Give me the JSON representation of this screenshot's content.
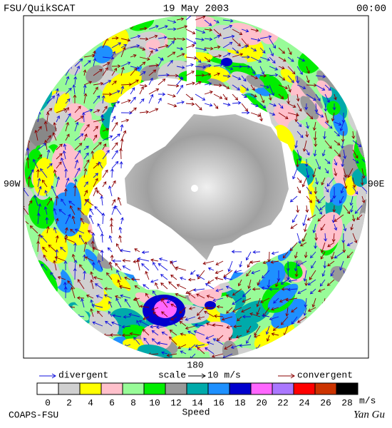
{
  "header": {
    "left": "FSU/QuikSCAT",
    "center": "19 May 2003",
    "right": "00:00"
  },
  "map": {
    "west_label": "90W",
    "east_label": "90E",
    "bottom_label": "180"
  },
  "legend": {
    "divergent": "divergent",
    "divergent_color": "#1010dd",
    "scale": "scale",
    "scale_value": "10 m/s",
    "convergent": "convergent",
    "convergent_color": "#8b0000"
  },
  "colorbar": {
    "ticks": [
      "0",
      "2",
      "4",
      "6",
      "8",
      "10",
      "12",
      "14",
      "16",
      "18",
      "20",
      "22",
      "24",
      "26",
      "28"
    ],
    "colors": [
      "#ffffff",
      "#d0d0d0",
      "#ffff00",
      "#ffc0cb",
      "#98fb98",
      "#00ee00",
      "#999999",
      "#00aaaa",
      "#1e90ff",
      "#0000cd",
      "#ff66ff",
      "#aa77ff",
      "#ff0000",
      "#cc3300",
      "#000000"
    ],
    "unit": "m/s",
    "title": "Speed"
  },
  "footer": {
    "left": "COAPS-FSU",
    "right": "Yan Gu"
  }
}
